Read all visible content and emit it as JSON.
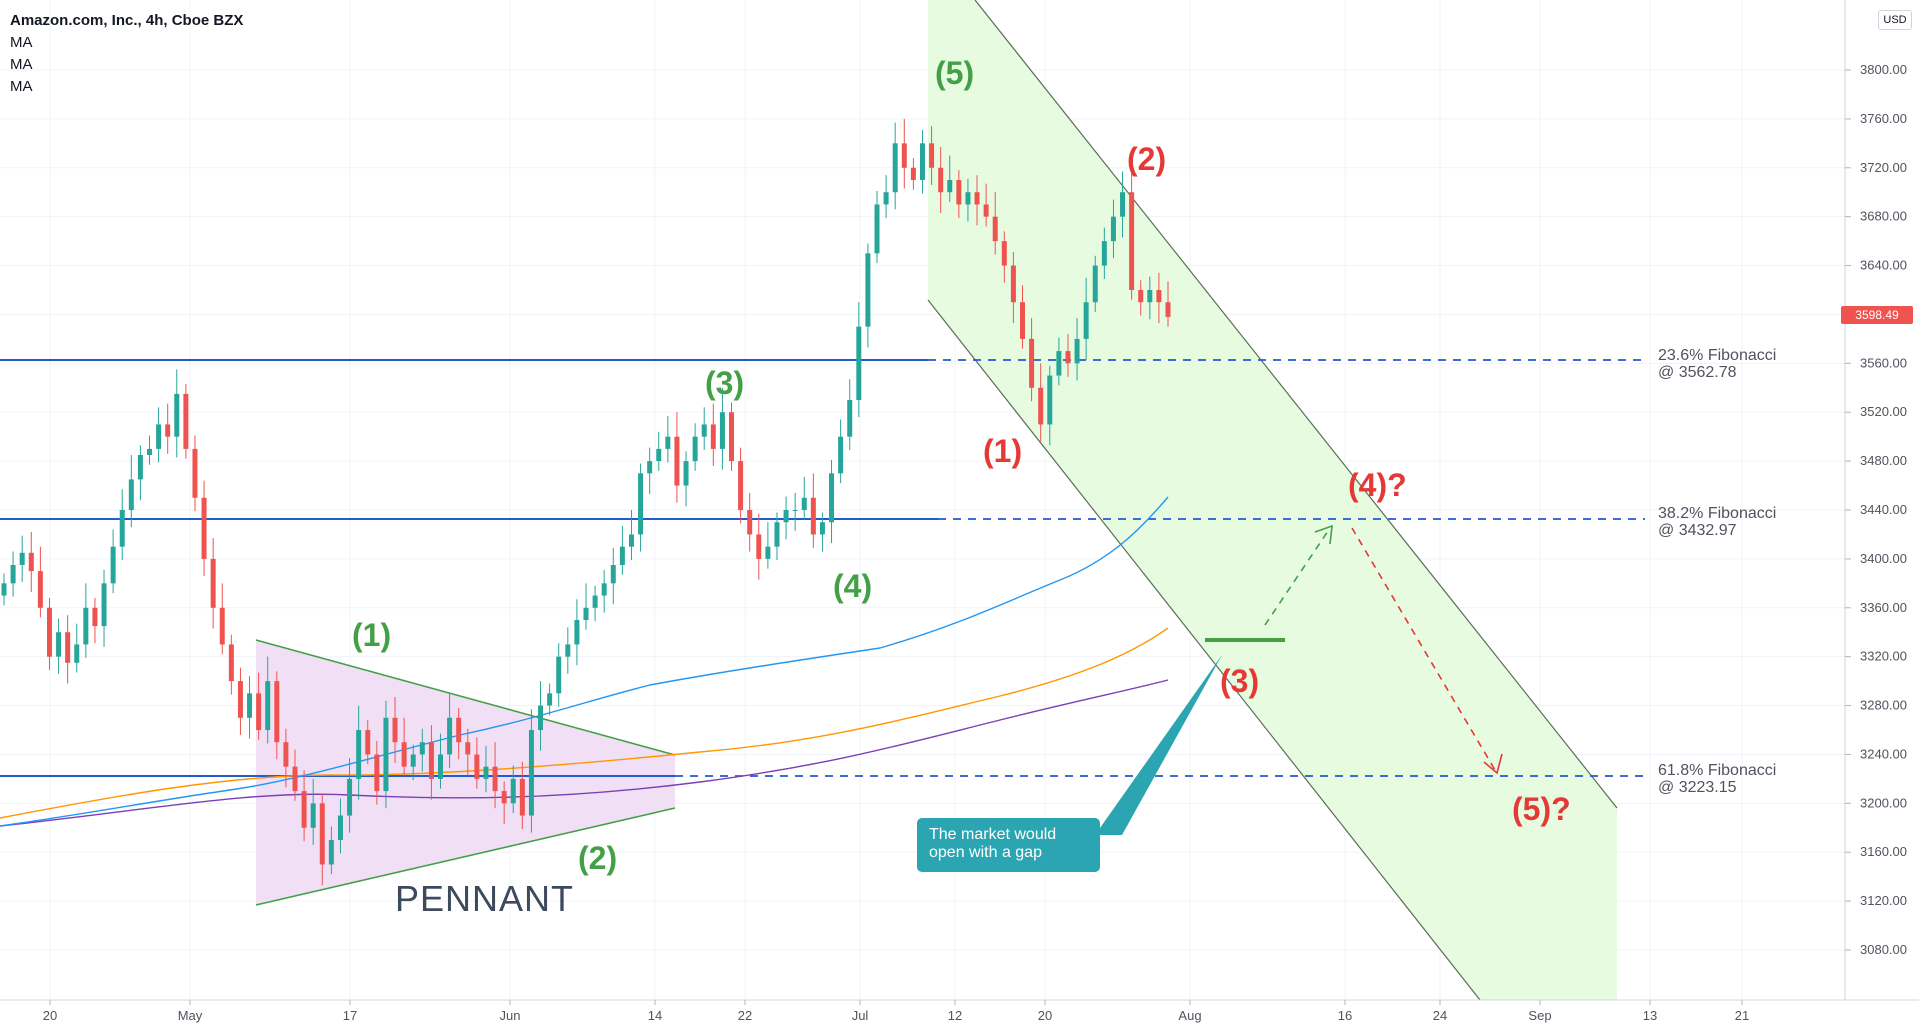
{
  "header": {
    "title": "Amazon.com, Inc., 4h, Cboe BZX",
    "indicators": [
      "MA",
      "MA",
      "MA"
    ]
  },
  "price_axis": {
    "currency": "USD",
    "labels": [
      "3800.00",
      "3760.00",
      "3720.00",
      "3680.00",
      "3640.00",
      "3600.00",
      "3560.00",
      "3520.00",
      "3480.00",
      "3440.00",
      "3400.00",
      "3360.00",
      "3320.00",
      "3280.00",
      "3240.00",
      "3200.00",
      "3160.00",
      "3120.00",
      "3080.00"
    ],
    "current_price": "3598.49"
  },
  "time_axis": {
    "labels": [
      "20",
      "May",
      "17",
      "Jun",
      "14",
      "22",
      "Jul",
      "12",
      "20",
      "Aug",
      "16",
      "24",
      "Sep",
      "13",
      "21"
    ]
  },
  "fibonacci": [
    {
      "name": "23.6% Fibonacci",
      "value": "@ 3562.78"
    },
    {
      "name": "38.2% Fibonacci",
      "value": "@ 3432.97"
    },
    {
      "name": "61.8% Fibonacci",
      "value": "@ 3223.15"
    }
  ],
  "waves": {
    "green": [
      "(1)",
      "(2)",
      "(3)",
      "(4)",
      "(5)"
    ],
    "red": [
      "(1)",
      "(2)",
      "(3)",
      "(4)?",
      "(5)?"
    ]
  },
  "pattern_label": "PENNANT",
  "callout_text": "The market would open with a gap",
  "colors": {
    "up": "#26a69a",
    "down": "#ef5350",
    "ma_blue": "#2196f3",
    "ma_orange": "#ff9800",
    "ma_purple": "#7b3fb5",
    "level_line": "#1e5ccf",
    "channel_fill": "#e6fbe0",
    "pennant_fill": "#f1e0f5"
  },
  "chart_data": {
    "type": "candlestick",
    "title": "Amazon.com, Inc., 4h, Cboe BZX",
    "ylim": [
      3060,
      3840
    ],
    "horizontal_levels": [
      3562.78,
      3432.97,
      3223.15
    ],
    "closes": [
      3380,
      3395,
      3405,
      3390,
      3360,
      3320,
      3340,
      3315,
      3330,
      3360,
      3345,
      3380,
      3410,
      3440,
      3465,
      3485,
      3490,
      3510,
      3500,
      3535,
      3490,
      3450,
      3400,
      3360,
      3330,
      3300,
      3270,
      3290,
      3260,
      3300,
      3250,
      3230,
      3210,
      3180,
      3200,
      3150,
      3170,
      3190,
      3220,
      3260,
      3240,
      3210,
      3270,
      3250,
      3230,
      3240,
      3250,
      3220,
      3240,
      3270,
      3250,
      3240,
      3220,
      3230,
      3210,
      3200,
      3220,
      3190,
      3260,
      3280,
      3290,
      3320,
      3330,
      3350,
      3360,
      3370,
      3380,
      3395,
      3410,
      3420,
      3470,
      3480,
      3490,
      3500,
      3460,
      3480,
      3500,
      3510,
      3490,
      3520,
      3480,
      3440,
      3420,
      3400,
      3410,
      3430,
      3440,
      3440,
      3450,
      3420,
      3430,
      3470,
      3500,
      3530,
      3590,
      3650,
      3690,
      3700,
      3740,
      3720,
      3710,
      3740,
      3720,
      3700,
      3710,
      3690,
      3700,
      3690,
      3680,
      3660,
      3640,
      3610,
      3580,
      3540,
      3510,
      3550,
      3570,
      3560,
      3580,
      3610,
      3640,
      3660,
      3680,
      3700,
      3620,
      3610,
      3620,
      3610,
      3598
    ]
  }
}
